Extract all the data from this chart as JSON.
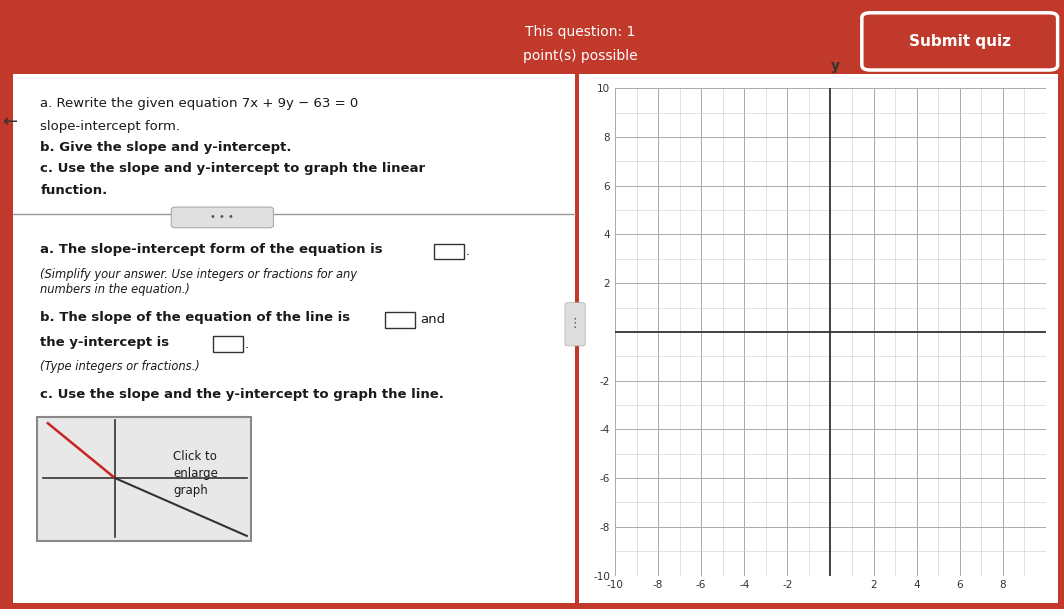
{
  "bg_color_top": "#c0392b",
  "bg_color_white": "#ffffff",
  "header_text1": "This question: 1",
  "header_text2": "point(s) possible",
  "submit_text": "Submit quiz",
  "back_arrow": "←",
  "q_text_a1": "a. Rewrite the given equation 7x + 9y − 63 = 0",
  "q_text_a2": "slope-intercept form.",
  "q_text_b": "b. Give the slope and y-intercept.",
  "q_text_c1": "c. Use the slope and y-intercept to graph the linear",
  "q_text_c2": "function.",
  "ans_a": "a. The slope-intercept form of the equation is",
  "ans_a_hint1": "(Simplify your answer. Use integers or fractions for any",
  "ans_a_hint2": "numbers in the equation.)",
  "ans_b1": "b. The slope of the equation of the line is",
  "ans_b2": "and",
  "ans_b3": "the y-intercept is",
  "ans_b4": ".",
  "ans_b_hint": "(Type integers or fractions.)",
  "ans_c": "c. Use the slope and the y-intercept to graph the line.",
  "click_to": "Click to",
  "enlarge": "enlarge",
  "graph_word": "graph",
  "graph_xlim": [
    -10,
    10
  ],
  "graph_ylim": [
    -10,
    10
  ],
  "graph_xticks": [
    -10,
    -8,
    -6,
    -4,
    -2,
    2,
    4,
    6,
    8
  ],
  "graph_yticks": [
    -10,
    -8,
    -6,
    -4,
    -2,
    2,
    4,
    6,
    8,
    10
  ],
  "graph_bg": "#ffffff",
  "grid_minor_color": "#cccccc",
  "grid_major_color": "#aaaaaa",
  "axis_color": "#333333",
  "text_color": "#1a1a1a",
  "crimson": "#c0392b",
  "white": "#ffffff",
  "light_gray": "#e8e8e8",
  "mid_gray": "#888888",
  "dark_gray": "#333333"
}
